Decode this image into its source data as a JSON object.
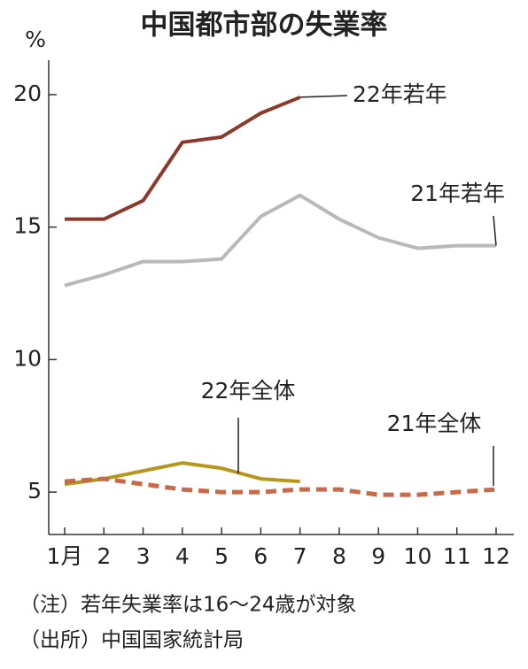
{
  "chart_data": {
    "type": "line",
    "title": "中国都市部の失業率",
    "y_unit": "%",
    "categories": [
      "1月",
      "2",
      "3",
      "4",
      "5",
      "6",
      "7",
      "8",
      "9",
      "10",
      "11",
      "12"
    ],
    "ylim": [
      3.4,
      21.3
    ],
    "yticks": [
      5,
      10,
      15,
      20
    ],
    "series": [
      {
        "name": "22年若年",
        "color": "#8b3a2a",
        "values": [
          15.3,
          15.3,
          16.0,
          18.2,
          18.4,
          19.3,
          19.9,
          null,
          null,
          null,
          null,
          null
        ]
      },
      {
        "name": "21年若年",
        "color": "#b8b9bb",
        "values": [
          12.8,
          13.2,
          13.7,
          13.7,
          13.8,
          15.4,
          16.2,
          15.3,
          14.6,
          14.2,
          14.3,
          14.3
        ]
      },
      {
        "name": "22年全体",
        "color": "#b8961e",
        "values": [
          5.3,
          5.5,
          5.8,
          6.1,
          5.9,
          5.5,
          5.4,
          null,
          null,
          null,
          null,
          null
        ]
      },
      {
        "name": "21年全体",
        "color": "#c8694a",
        "dashed": true,
        "values": [
          5.4,
          5.5,
          5.3,
          5.1,
          5.0,
          5.0,
          5.1,
          5.1,
          4.9,
          4.9,
          5.0,
          5.1
        ]
      }
    ],
    "notes": [
      "（注）若年失業率は16～24歳が対象",
      "（出所）中国国家統計局"
    ]
  }
}
